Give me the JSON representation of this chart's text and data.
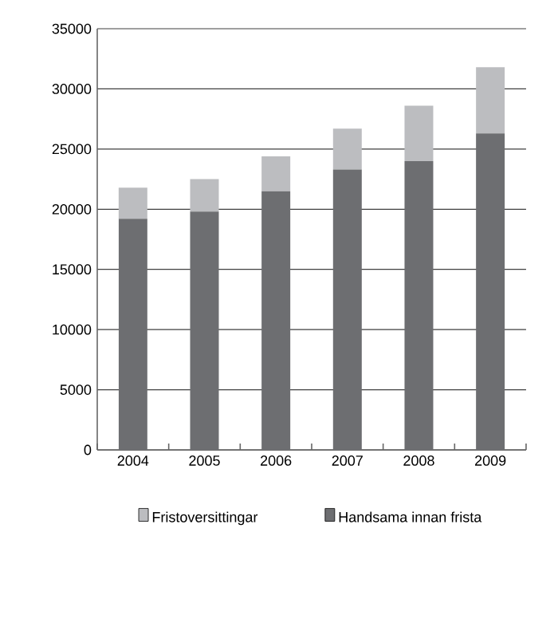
{
  "chart_data": {
    "type": "bar",
    "stacked": true,
    "categories": [
      "2004",
      "2005",
      "2006",
      "2007",
      "2008",
      "2009"
    ],
    "series": [
      {
        "name": "Handsama innan frista",
        "color": "#6d6e71",
        "values": [
          19200,
          19800,
          21500,
          23300,
          24000,
          26300
        ]
      },
      {
        "name": "Fristoversittingar",
        "color": "#bcbdc0",
        "values": [
          2600,
          2700,
          2900,
          3400,
          4600,
          5500
        ]
      }
    ],
    "ylim": [
      0,
      35000
    ],
    "yticks": [
      0,
      5000,
      10000,
      15000,
      20000,
      25000,
      30000,
      35000
    ],
    "grid": "y",
    "legend": "bottom"
  }
}
